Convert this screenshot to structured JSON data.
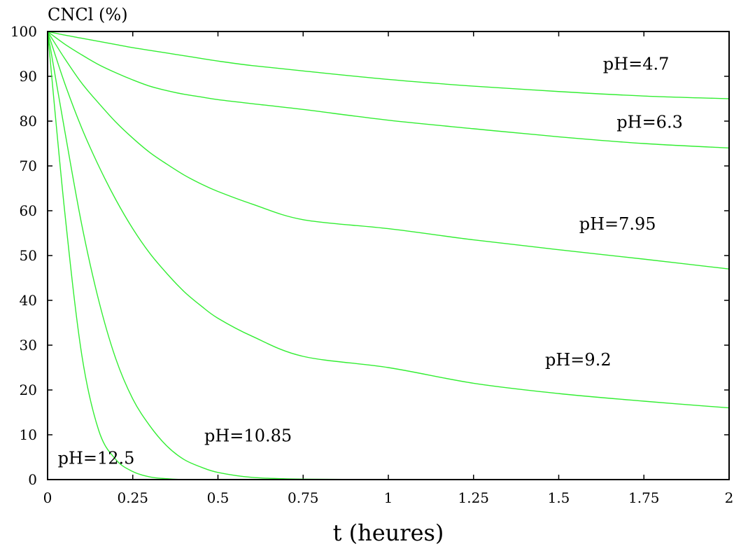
{
  "chart_data": {
    "type": "line",
    "title": "",
    "xlabel": "t (heures)",
    "ylabel": "CNCl (%)",
    "xlim": [
      0,
      2
    ],
    "ylim": [
      0,
      100
    ],
    "x_ticks": [
      "0",
      "0.25",
      "0.5",
      "0.75",
      "1",
      "1.25",
      "1.5",
      "1.75",
      "2"
    ],
    "y_ticks": [
      "0",
      "10",
      "20",
      "30",
      "40",
      "50",
      "60",
      "70",
      "80",
      "90",
      "100"
    ],
    "grid": false,
    "legend": "none",
    "line_color": "#33ee33",
    "x": [
      0,
      0.05,
      0.1,
      0.15,
      0.2,
      0.25,
      0.3,
      0.35,
      0.4,
      0.45,
      0.5,
      0.6,
      0.75,
      1,
      1.25,
      1.5,
      1.75,
      2
    ],
    "series": [
      {
        "name": "pH=4.7",
        "values": [
          100,
          99.2,
          98.5,
          97.8,
          97.1,
          96.4,
          95.8,
          95.2,
          94.6,
          94.0,
          93.4,
          92.4,
          91.2,
          89.3,
          87.8,
          86.6,
          85.6,
          85
        ]
      },
      {
        "name": "pH=6.3",
        "values": [
          100,
          97.2,
          94.8,
          92.6,
          90.8,
          89.2,
          87.8,
          86.8,
          86.0,
          85.4,
          84.8,
          83.9,
          82.6,
          80.2,
          78.3,
          76.5,
          75.0,
          74
        ]
      },
      {
        "name": "pH=7.95",
        "values": [
          100,
          94.0,
          88.5,
          84.0,
          79.8,
          76.2,
          73.0,
          70.4,
          68.0,
          66.0,
          64.3,
          61.5,
          58.0,
          56.0,
          53.5,
          51.3,
          49.2,
          47
        ]
      },
      {
        "name": "pH=9.2",
        "values": [
          100,
          88.5,
          78.5,
          70.0,
          62.5,
          56.0,
          50.5,
          46.0,
          42.0,
          38.8,
          36.0,
          32.0,
          27.5,
          25.0,
          21.5,
          19.2,
          17.5,
          16
        ]
      },
      {
        "name": "pH=10.85",
        "values": [
          100,
          78.0,
          57.0,
          40.0,
          27.0,
          18.0,
          12.0,
          7.5,
          4.5,
          2.8,
          1.6,
          0.5,
          0.1,
          0,
          0,
          0,
          0,
          0
        ]
      },
      {
        "name": "pH=12.5",
        "values": [
          100,
          60.0,
          28.0,
          11.0,
          4.5,
          1.8,
          0.6,
          0.2,
          0,
          0,
          0,
          0,
          0,
          0,
          0,
          0,
          0,
          0
        ]
      }
    ],
    "annotations": [
      {
        "text": "pH=4.7",
        "x": 1.63,
        "y": 91.5
      },
      {
        "text": "pH=6.3",
        "x": 1.67,
        "y": 78.5
      },
      {
        "text": "pH=7.95",
        "x": 1.56,
        "y": 55.8
      },
      {
        "text": "pH=9.2",
        "x": 1.46,
        "y": 25.5
      },
      {
        "text": "pH=10.85",
        "x": 0.46,
        "y": 8.5
      },
      {
        "text": "pH=12.5",
        "x": 0.03,
        "y": 3.5
      }
    ]
  }
}
